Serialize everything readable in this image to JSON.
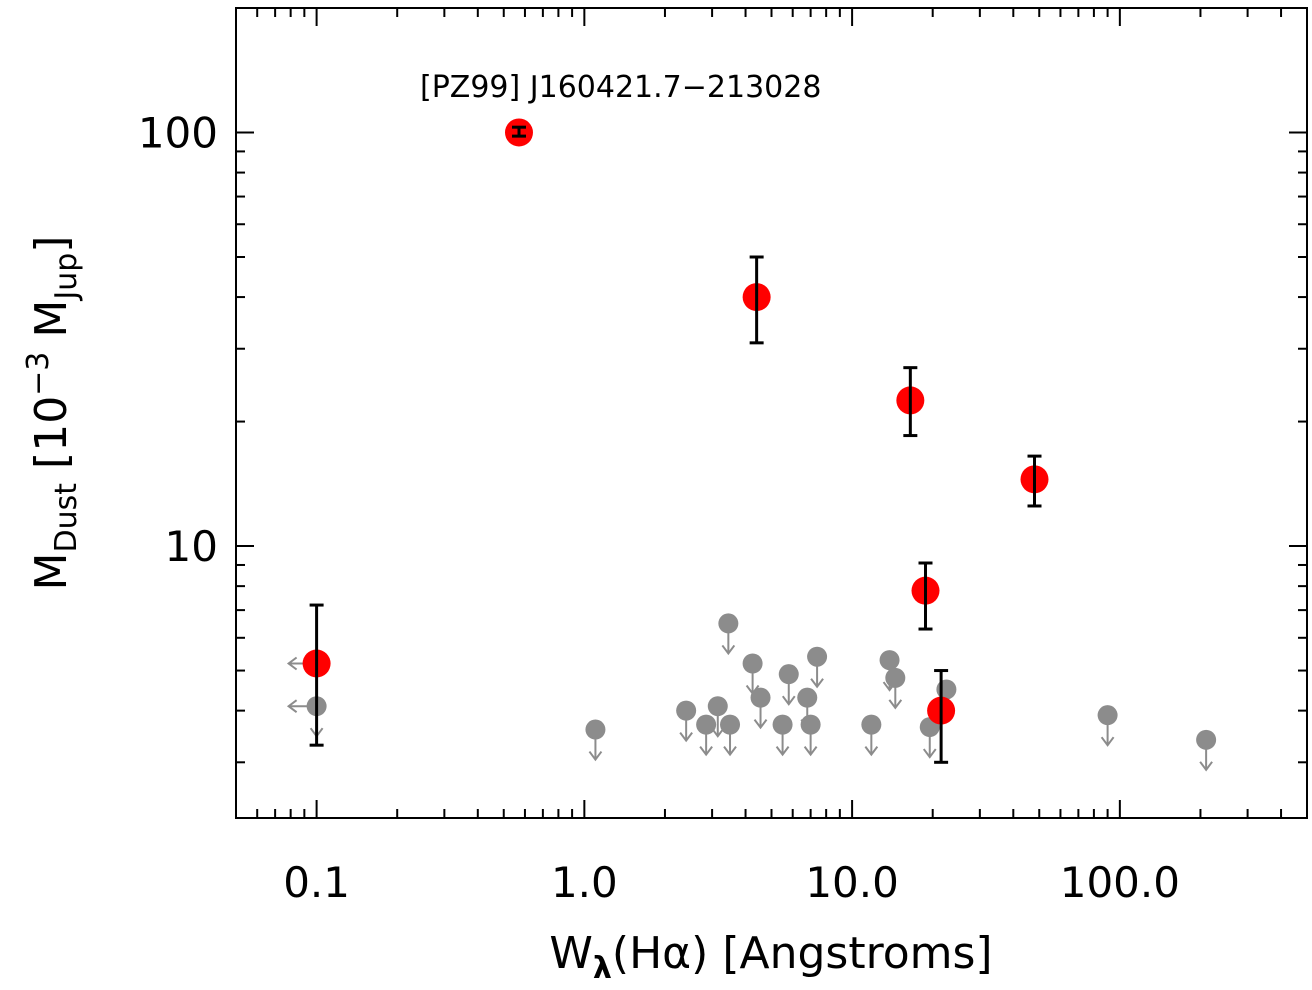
{
  "chart_data": {
    "type": "scatter",
    "x_scale": "log",
    "y_scale": "log",
    "xlim": [
      0.05,
      500
    ],
    "ylim": [
      2.2,
      200
    ],
    "grid": false,
    "xlabel": {
      "base": "W",
      "sub": "λ",
      "rest": "(Hα) [Angstroms]"
    },
    "ylabel": {
      "base": "M",
      "sub": "Dust",
      "mid": " [10",
      "sup": "−3",
      "end": " M",
      "sub2": "Jup",
      "close": "]"
    },
    "x_ticks": [
      {
        "value": 0.1,
        "label": "0.1"
      },
      {
        "value": 1,
        "label": "1.0"
      },
      {
        "value": 10,
        "label": "10.0"
      },
      {
        "value": 100,
        "label": "100.0"
      }
    ],
    "y_ticks": [
      {
        "value": 10,
        "label": "10"
      },
      {
        "value": 100,
        "label": "100"
      }
    ],
    "annotation": {
      "text": "[PZ99] J160421.7−213028",
      "x": 0.57,
      "y": 100
    },
    "colors": {
      "detection": "#ff0000",
      "upper_limit": "#8c8c8c",
      "error_bar": "#000000"
    },
    "detections": [
      {
        "x": 0.1,
        "y": 5.2,
        "y_low": 3.3,
        "y_high": 7.2,
        "x_upper_limit": true
      },
      {
        "x": 0.57,
        "y": 100,
        "y_low": 98,
        "y_high": 103
      },
      {
        "x": 4.4,
        "y": 40,
        "y_low": 31,
        "y_high": 50
      },
      {
        "x": 16.5,
        "y": 22.5,
        "y_low": 18.5,
        "y_high": 27
      },
      {
        "x": 48,
        "y": 14.5,
        "y_low": 12.5,
        "y_high": 16.5
      },
      {
        "x": 18.8,
        "y": 7.8,
        "y_low": 6.3,
        "y_high": 9.1
      },
      {
        "x": 21.5,
        "y": 4.0,
        "y_low": 3.0,
        "y_high": 5.0
      }
    ],
    "upper_limits": [
      {
        "x": 0.1,
        "y": 4.1,
        "x_upper_limit": true
      },
      {
        "x": 1.1,
        "y": 3.6
      },
      {
        "x": 2.4,
        "y": 4.0
      },
      {
        "x": 2.85,
        "y": 3.7
      },
      {
        "x": 3.15,
        "y": 4.1
      },
      {
        "x": 3.45,
        "y": 6.5
      },
      {
        "x": 3.5,
        "y": 3.7
      },
      {
        "x": 4.25,
        "y": 5.2
      },
      {
        "x": 4.55,
        "y": 4.3
      },
      {
        "x": 5.5,
        "y": 3.7
      },
      {
        "x": 5.8,
        "y": 4.9
      },
      {
        "x": 6.8,
        "y": 4.3
      },
      {
        "x": 7.0,
        "y": 3.7
      },
      {
        "x": 7.4,
        "y": 5.4
      },
      {
        "x": 11.8,
        "y": 3.7
      },
      {
        "x": 13.8,
        "y": 5.3
      },
      {
        "x": 14.5,
        "y": 4.8
      },
      {
        "x": 19.5,
        "y": 3.65
      },
      {
        "x": 22.5,
        "y": 4.5
      },
      {
        "x": 90,
        "y": 3.9
      },
      {
        "x": 210,
        "y": 3.4
      }
    ]
  }
}
